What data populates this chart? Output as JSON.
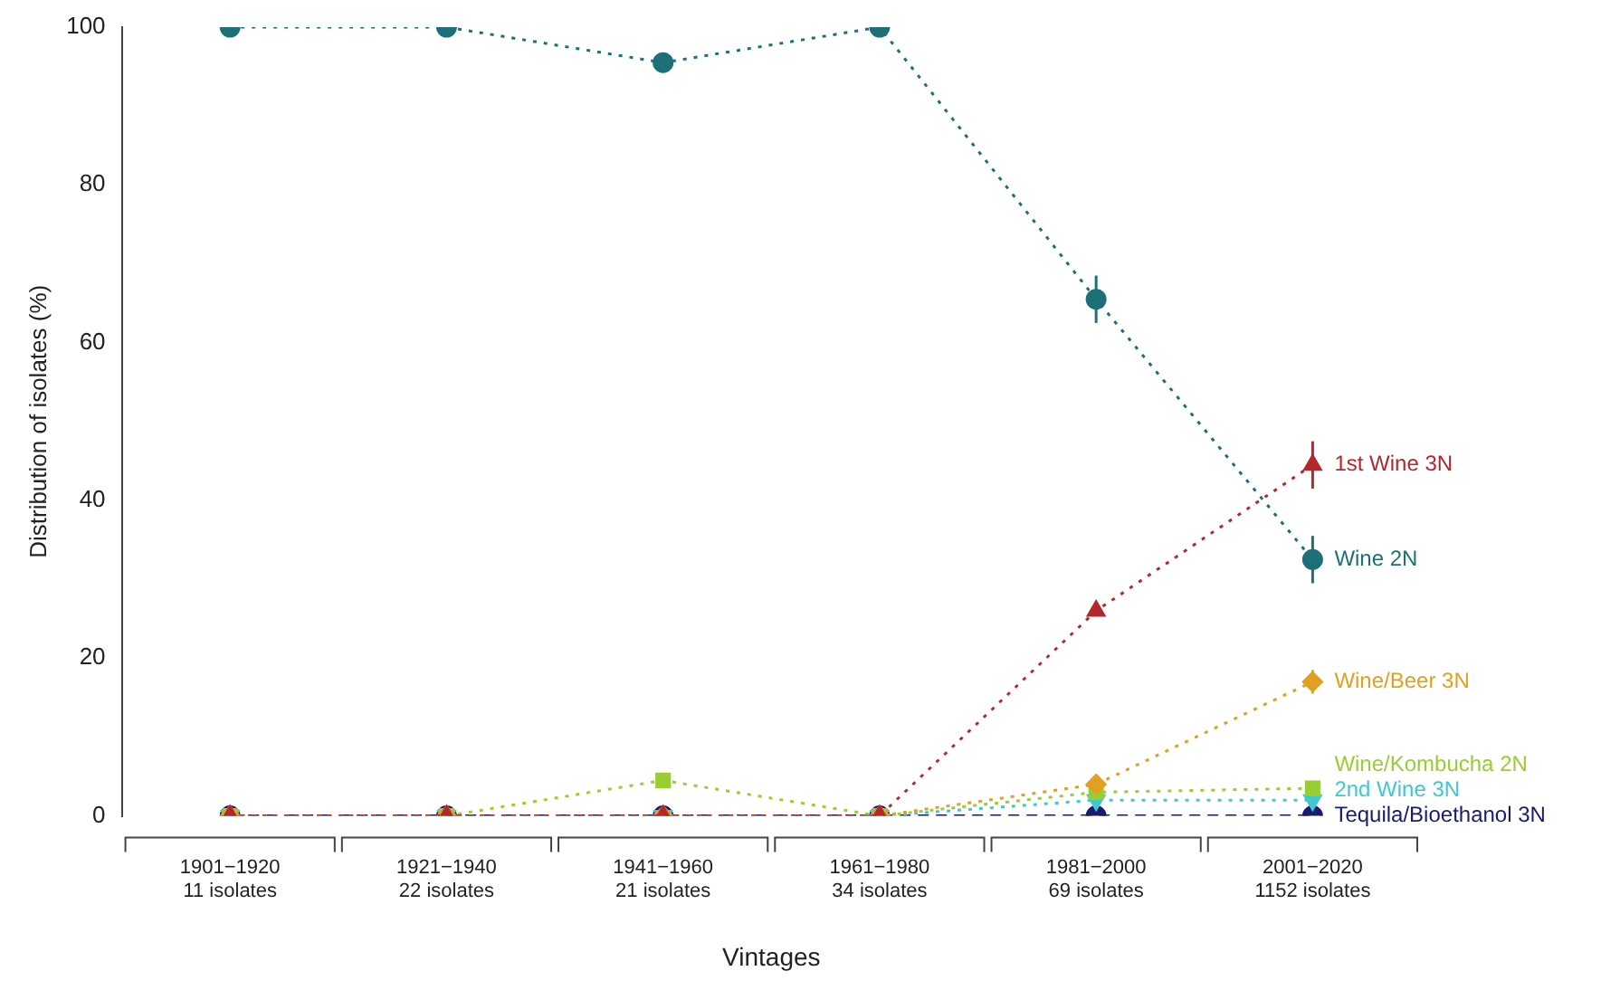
{
  "chart_data": {
    "type": "line",
    "xlabel": "Vintages",
    "ylabel": "Distribution of isolates (%)",
    "categories": [
      "1901−1920\n11 isolates",
      "1921−1940\n22 isolates",
      "1941−1960\n21 isolates",
      "1961−1980\n34 isolates",
      "1981−2000\n69 isolates",
      "2001−2020\n1152 isolates"
    ],
    "ylim": [
      0,
      100
    ],
    "yticks": [
      0,
      20,
      40,
      60,
      80,
      100
    ],
    "grid": false,
    "legend": false,
    "series": [
      {
        "name": "Wine 2N",
        "color": "#1d6f78",
        "marker": "circle",
        "line_style": "dotted",
        "values": [
          100,
          100,
          95.5,
          100,
          65.5,
          32.5
        ],
        "errors": [
          null,
          null,
          null,
          null,
          3,
          3
        ]
      },
      {
        "name": "1st Wine 3N",
        "color": "#b3282d",
        "marker": "triangle",
        "line_style": "dotted",
        "values": [
          0,
          0,
          0,
          0,
          26,
          44.5
        ],
        "errors": [
          null,
          null,
          null,
          null,
          null,
          3
        ]
      },
      {
        "name": "Wine/Beer 3N",
        "color": "#e0a020",
        "marker": "diamond",
        "line_style": "dotted",
        "values": [
          0,
          0,
          0,
          0,
          4,
          17
        ],
        "errors": [
          null,
          null,
          null,
          null,
          null,
          1.5
        ]
      },
      {
        "name": "Wine/Kombucha 2N",
        "color": "#9acd32",
        "marker": "square",
        "line_style": "dotted",
        "values": [
          0,
          0,
          4.5,
          0,
          3,
          3.5
        ]
      },
      {
        "name": "2nd Wine 3N",
        "color": "#40c8d0",
        "marker": "triangle_down",
        "line_style": "dotted",
        "values": [
          0,
          0,
          0,
          0,
          2,
          2
        ]
      },
      {
        "name": "Tequila/Bioethanol 3N",
        "color": "#1a1a6e",
        "marker": "circle",
        "line_style": "dashed",
        "values": [
          0,
          0,
          0,
          0,
          0,
          0
        ]
      }
    ]
  }
}
